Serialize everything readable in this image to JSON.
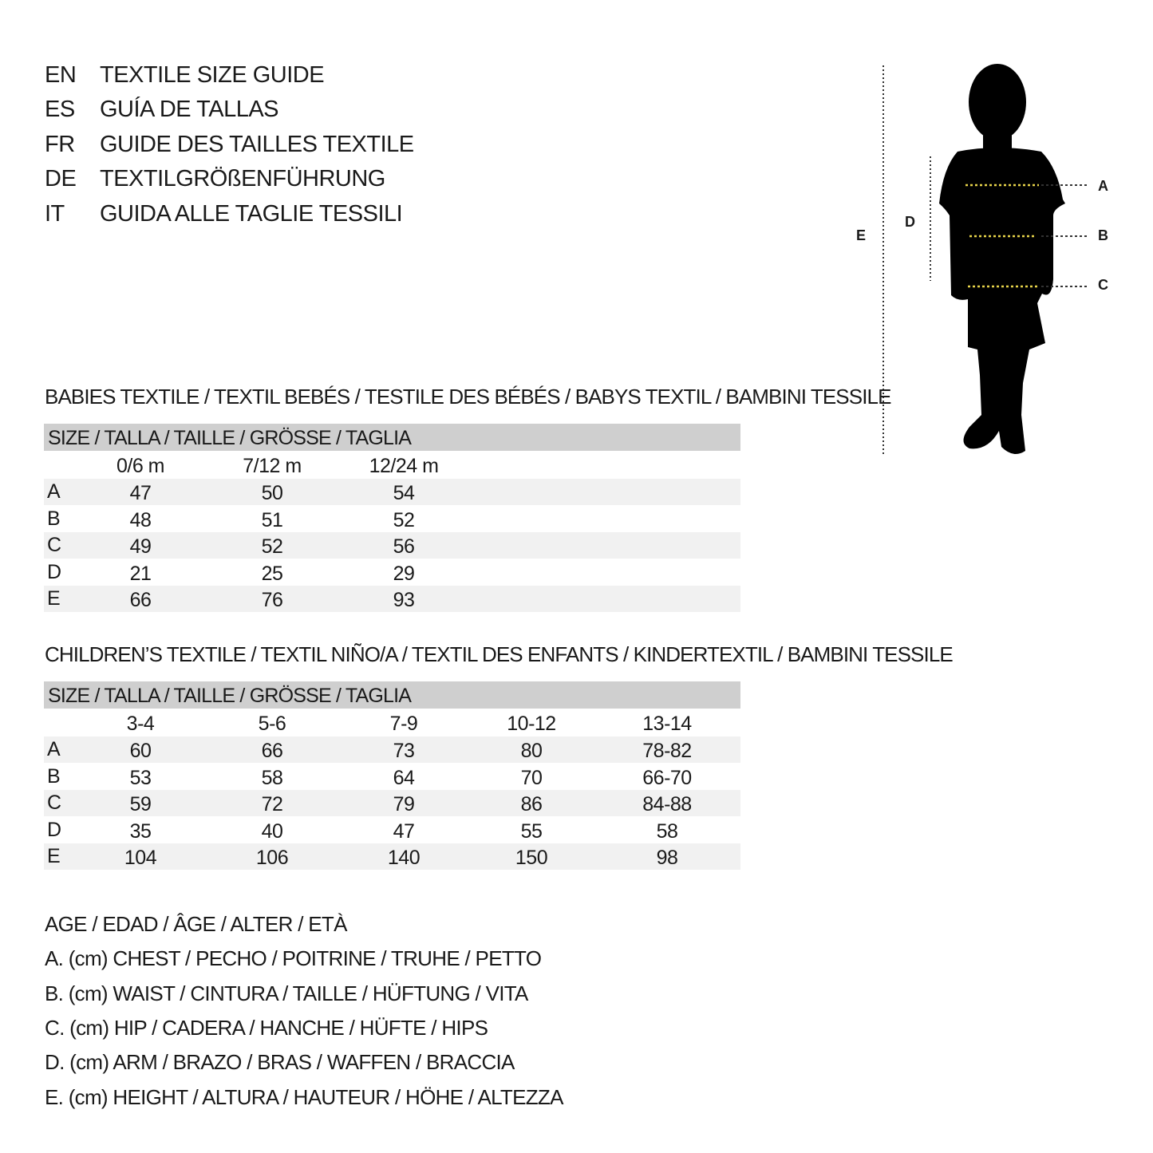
{
  "titles": [
    {
      "lang": "EN",
      "text": "TEXTILE SIZE GUIDE"
    },
    {
      "lang": "ES",
      "text": "GUÍA DE TALLAS"
    },
    {
      "lang": "FR",
      "text": "GUIDE DES TAILLES TEXTILE"
    },
    {
      "lang": "DE",
      "text": "TEXTILGRÖßENFÜHRUNG"
    },
    {
      "lang": "IT",
      "text": "GUIDA ALLE TAGLIE TESSILI"
    }
  ],
  "figure": {
    "labels": {
      "A": "A",
      "B": "B",
      "C": "C",
      "D": "D",
      "E": "E"
    },
    "accent_color": "#e8d44a"
  },
  "babies": {
    "title": "BABIES TEXTILE / TEXTIL BEBÉS / TESTILE DES BÉBÉS / BABYS TEXTIL / BAMBINI TESSILE",
    "size_header": "SIZE / TALLA / TAILLE / GRÖSSE / TAGLIA",
    "columns": [
      "0/6 m",
      "7/12 m",
      "12/24 m"
    ],
    "rows": [
      {
        "label": "A",
        "values": [
          "47",
          "50",
          "54"
        ]
      },
      {
        "label": "B",
        "values": [
          "48",
          "51",
          "52"
        ]
      },
      {
        "label": "C",
        "values": [
          "49",
          "52",
          "56"
        ]
      },
      {
        "label": "D",
        "values": [
          "21",
          "25",
          "29"
        ]
      },
      {
        "label": "E",
        "values": [
          "66",
          "76",
          "93"
        ]
      }
    ]
  },
  "children": {
    "title": "CHILDREN’S TEXTILE / TEXTIL NIÑO/A / TEXTIL DES ENFANTS / KINDERTEXTIL / BAMBINI TESSILE",
    "size_header": "SIZE / TALLA / TAILLE / GRÖSSE / TAGLIA",
    "columns": [
      "3-4",
      "5-6",
      "7-9",
      "10-12",
      "13-14"
    ],
    "rows": [
      {
        "label": "A",
        "values": [
          "60",
          "66",
          "73",
          "80",
          "78-82"
        ]
      },
      {
        "label": "B",
        "values": [
          "53",
          "58",
          "64",
          "70",
          "66-70"
        ]
      },
      {
        "label": "C",
        "values": [
          "59",
          "72",
          "79",
          "86",
          "84-88"
        ]
      },
      {
        "label": "D",
        "values": [
          "35",
          "40",
          "47",
          "55",
          "58"
        ]
      },
      {
        "label": "E",
        "values": [
          "104",
          "106",
          "140",
          "150",
          "98"
        ]
      }
    ]
  },
  "legend": [
    "AGE / EDAD / ÂGE / ALTER / ETÀ",
    "A. (cm) CHEST / PECHO / POITRINE / TRUHE / PETTO",
    "B. (cm) WAIST / CINTURA / TAILLE / HÜFTUNG / VITA",
    "C. (cm) HIP / CADERA / HANCHE / HÜFTE / HIPS",
    "D. (cm) ARM / BRAZO / BRAS / WAFFEN / BRACCIA",
    "E. (cm) HEIGHT / ALTURA / HAUTEUR / HÖHE / ALTEZZA"
  ]
}
